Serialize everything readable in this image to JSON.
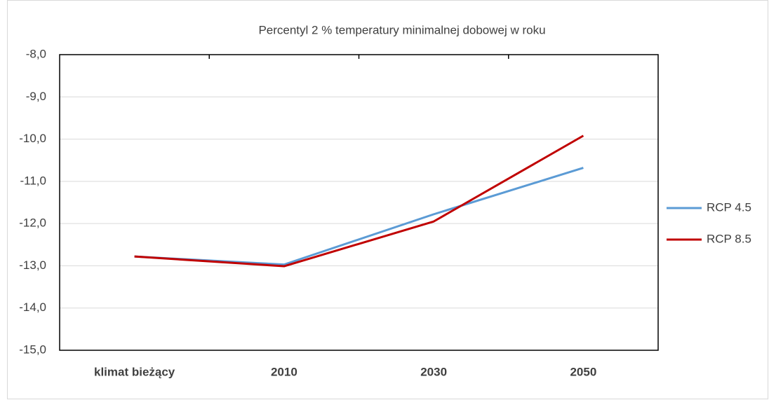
{
  "chart_data": {
    "type": "line",
    "title": "Percentyl 2 % temperatury minimalnej dobowej w roku",
    "categories": [
      "klimat bieżący",
      "2010",
      "2030",
      "2050"
    ],
    "series": [
      {
        "name": "RCP 4.5",
        "color": "#5b9bd5",
        "values": [
          -12.78,
          -12.97,
          -11.78,
          -10.68
        ]
      },
      {
        "name": "RCP 8.5",
        "color": "#c00000",
        "values": [
          -12.78,
          -13.01,
          -11.95,
          -9.92
        ]
      }
    ],
    "ylim": [
      -15,
      -8
    ],
    "yticks": [
      {
        "value": -15,
        "label": "-15,0"
      },
      {
        "value": -14,
        "label": "-14,0"
      },
      {
        "value": -13,
        "label": "-13,0"
      },
      {
        "value": -12,
        "label": "-12,0"
      },
      {
        "value": -11,
        "label": "-11,0"
      },
      {
        "value": -10,
        "label": "-10,0"
      },
      {
        "value": -9,
        "label": "-9,0"
      },
      {
        "value": -8,
        "label": "-8,0"
      }
    ],
    "grid": true,
    "legend": "right"
  }
}
